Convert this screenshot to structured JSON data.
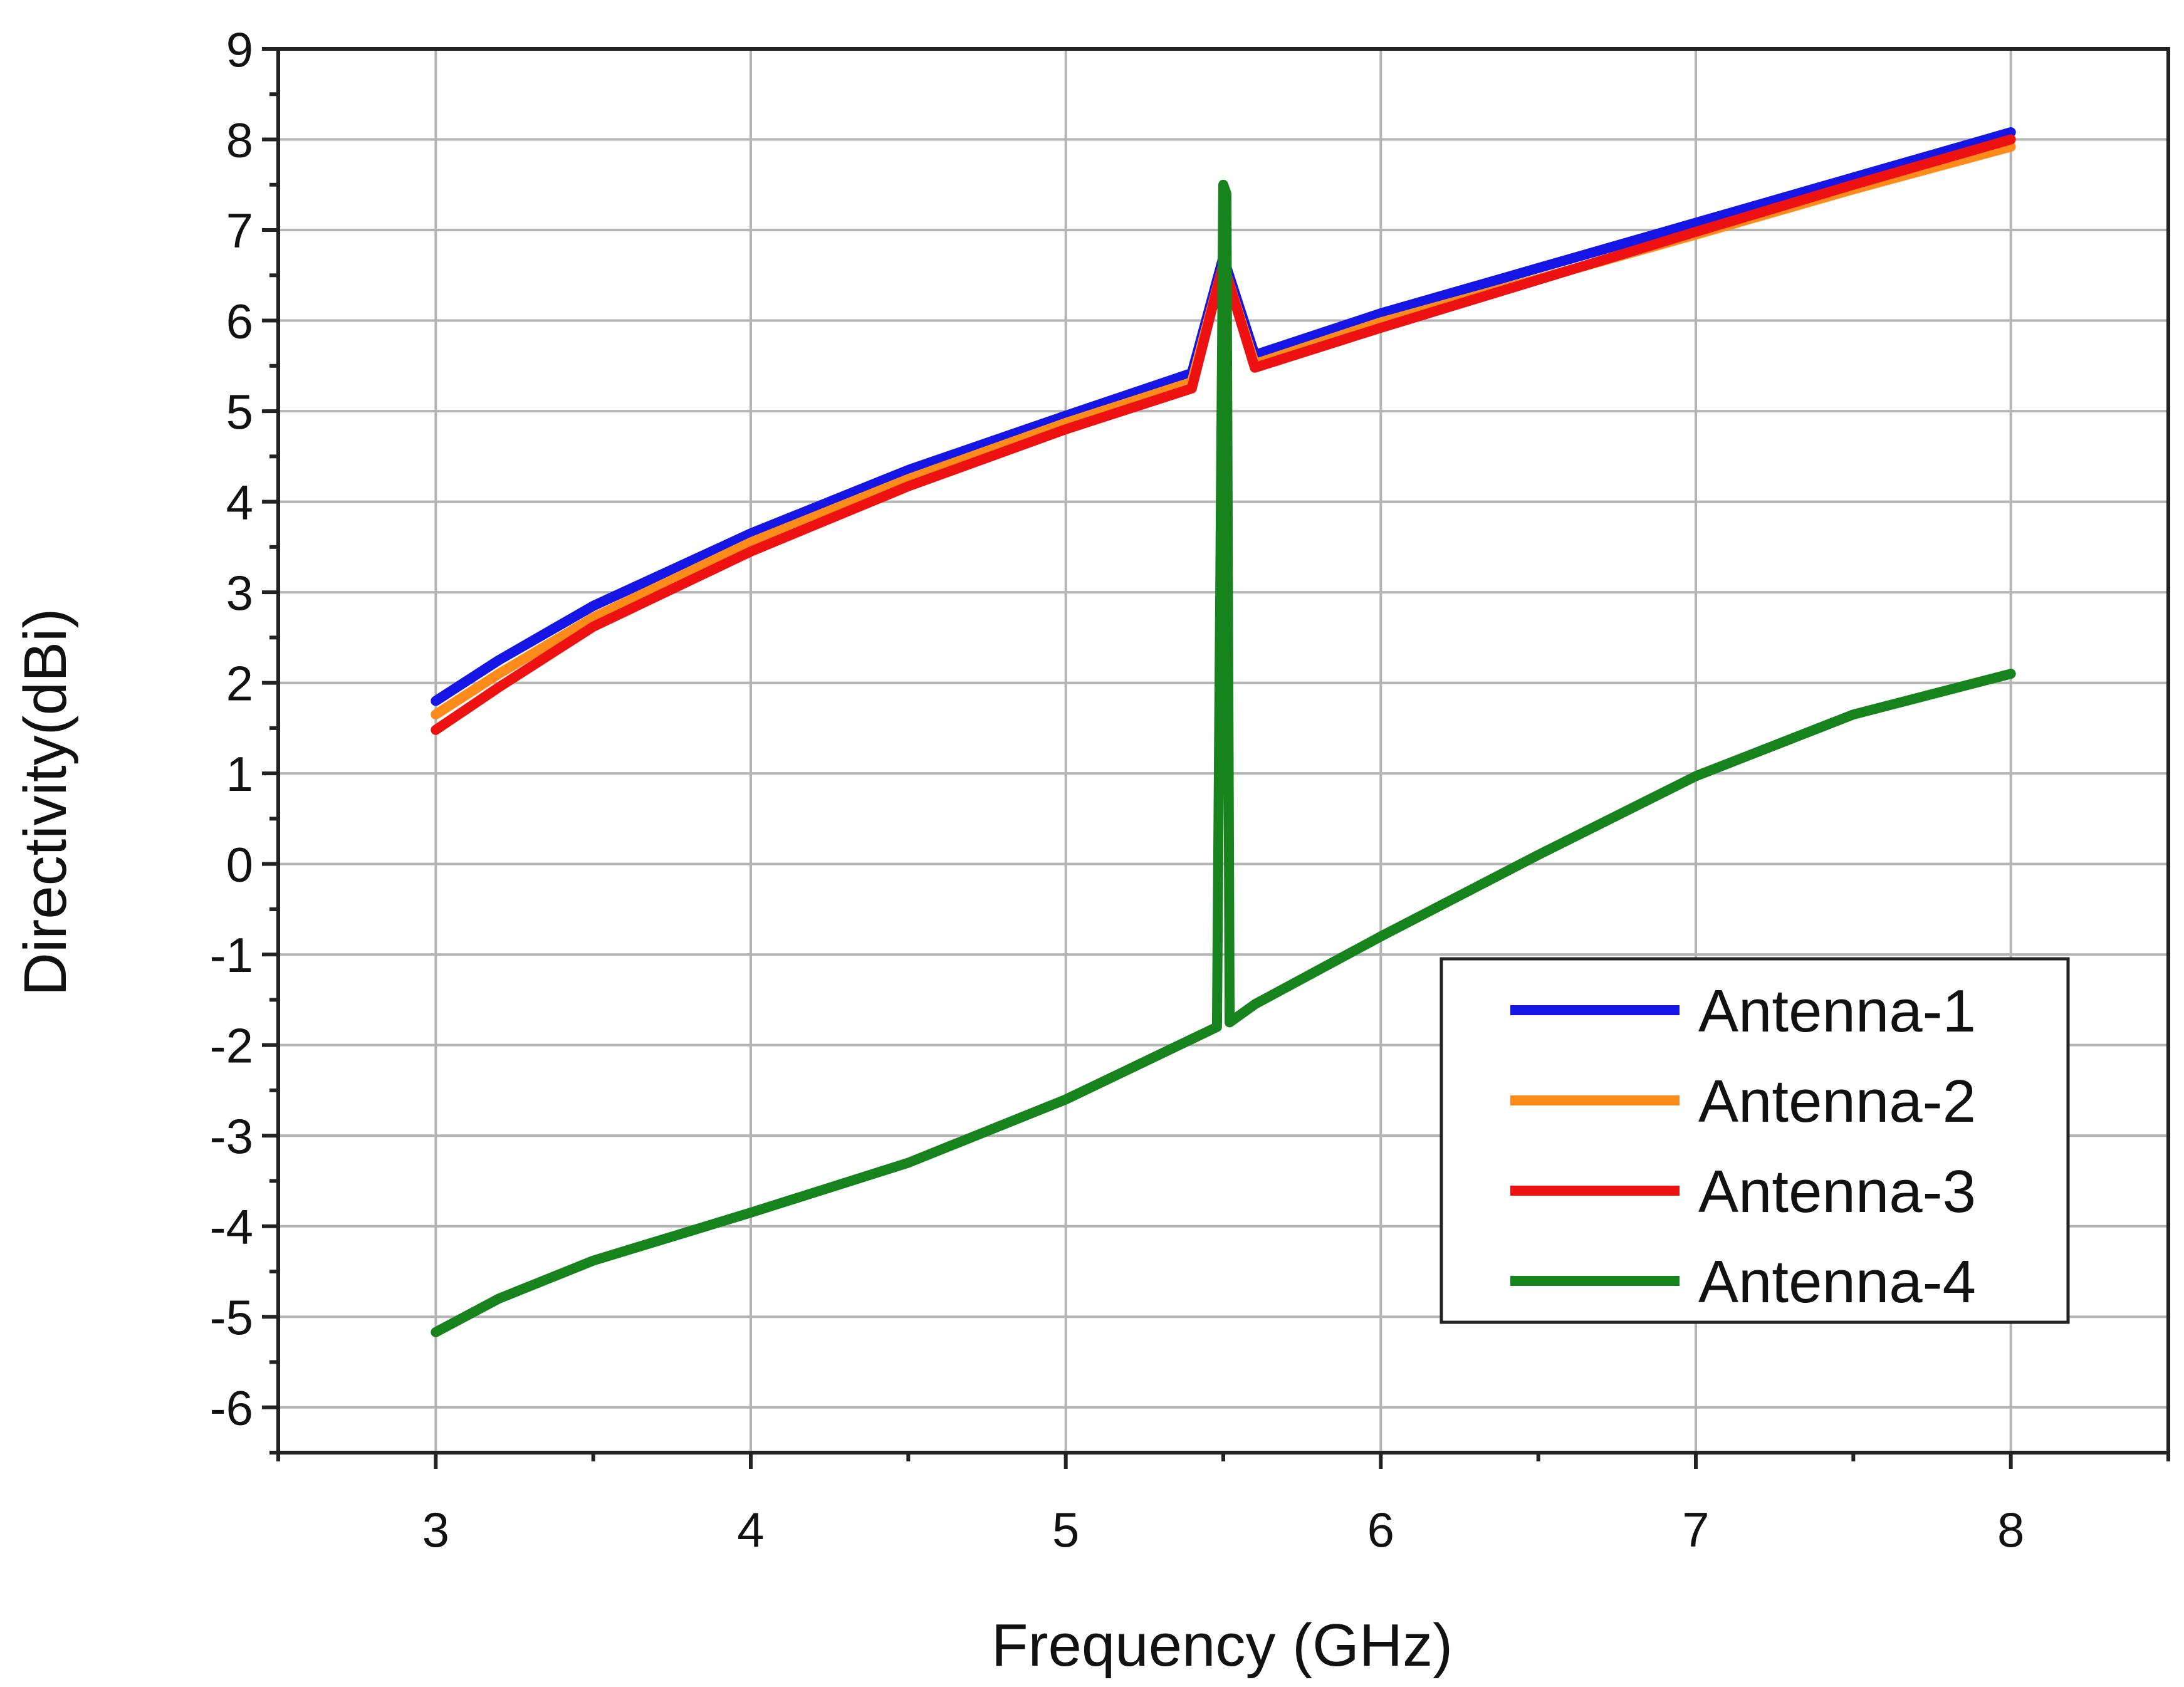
{
  "chart_data": {
    "type": "line",
    "xlabel": "Frequency (GHz)",
    "ylabel": "Directivity(dBi)",
    "xlim": [
      2.5,
      8.5
    ],
    "ylim": [
      -6.5,
      9
    ],
    "xticks": [
      "3",
      "4",
      "5",
      "6",
      "7",
      "8"
    ],
    "yticks": [
      "-6",
      "-5",
      "-4",
      "-3",
      "-2",
      "-1",
      "0",
      "1",
      "2",
      "3",
      "4",
      "5",
      "6",
      "7",
      "8",
      "9"
    ],
    "grid": true,
    "legend_position": "bottom-right",
    "series": [
      {
        "name": "Antenna-1",
        "color": "#1515e6",
        "x": [
          3.0,
          3.2,
          3.5,
          4.0,
          4.5,
          5.0,
          5.4,
          5.5,
          5.6,
          6.0,
          6.5,
          7.0,
          7.5,
          8.0
        ],
        "y": [
          1.8,
          2.25,
          2.85,
          3.65,
          4.35,
          4.95,
          5.42,
          6.7,
          5.62,
          6.08,
          6.58,
          7.08,
          7.58,
          8.08
        ]
      },
      {
        "name": "Antenna-2",
        "color": "#ff8c1a",
        "x": [
          3.0,
          3.2,
          3.5,
          4.0,
          4.5,
          5.0,
          5.4,
          5.5,
          5.6,
          6.0,
          6.5,
          7.0,
          7.5,
          8.0
        ],
        "y": [
          1.65,
          2.1,
          2.72,
          3.55,
          4.25,
          4.87,
          5.32,
          6.62,
          5.52,
          5.98,
          6.46,
          6.95,
          7.45,
          7.92
        ]
      },
      {
        "name": "Antenna-3",
        "color": "#ee1111",
        "x": [
          3.0,
          3.2,
          3.5,
          4.0,
          4.5,
          5.0,
          5.4,
          5.5,
          5.6,
          6.0,
          6.5,
          7.0,
          7.5,
          8.0
        ],
        "y": [
          1.48,
          1.95,
          2.62,
          3.45,
          4.17,
          4.8,
          5.25,
          6.62,
          5.48,
          5.92,
          6.45,
          6.98,
          7.5,
          8.0
        ]
      },
      {
        "name": "Antenna-4",
        "color": "#17831c",
        "x": [
          3.0,
          3.2,
          3.5,
          4.0,
          4.5,
          5.0,
          5.3,
          5.48,
          5.5,
          5.51,
          5.52,
          5.6,
          6.0,
          6.5,
          7.0,
          7.5,
          8.0
        ],
        "y": [
          -5.17,
          -4.8,
          -4.38,
          -3.85,
          -3.3,
          -2.6,
          -2.1,
          -1.8,
          7.5,
          7.4,
          -1.75,
          -1.55,
          -0.8,
          0.1,
          0.97,
          1.65,
          2.1
        ]
      }
    ]
  }
}
